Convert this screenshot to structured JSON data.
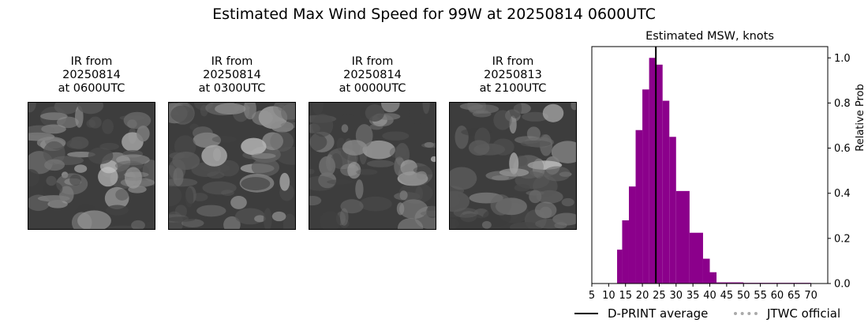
{
  "figure": {
    "title": "Estimated Max Wind Speed for 99W at 20250814 0600UTC"
  },
  "panels": [
    {
      "title": "IR from\n20250814\nat 0600UTC"
    },
    {
      "title": "IR from\n20250814\nat 0300UTC"
    },
    {
      "title": "IR from\n20250814\nat 0000UTC"
    },
    {
      "title": "IR from\n20250813\nat 2100UTC"
    }
  ],
  "chart_data": {
    "type": "bar",
    "title": "Estimated MSW, knots",
    "xlabel": "",
    "ylabel": "Relative Prob",
    "xlim": [
      5,
      75
    ],
    "ylim": [
      0,
      1.05
    ],
    "xticks": [
      5,
      10,
      15,
      20,
      25,
      30,
      35,
      40,
      45,
      50,
      55,
      60,
      65,
      70
    ],
    "yticks": [
      0.0,
      0.2,
      0.4,
      0.6,
      0.8,
      1.0
    ],
    "ytick_labels": [
      "0.0",
      "0.2",
      "0.4",
      "0.6",
      "0.8",
      "1.0"
    ],
    "y_axis_side": "right",
    "bar_color": "#8b008b",
    "bins": [
      {
        "x0": 12.5,
        "x1": 14,
        "value": 0.15
      },
      {
        "x0": 14,
        "x1": 16,
        "value": 0.28
      },
      {
        "x0": 16,
        "x1": 18,
        "value": 0.43
      },
      {
        "x0": 18,
        "x1": 20,
        "value": 0.68
      },
      {
        "x0": 20,
        "x1": 22,
        "value": 0.86
      },
      {
        "x0": 22,
        "x1": 24,
        "value": 1.0
      },
      {
        "x0": 24,
        "x1": 26,
        "value": 0.97
      },
      {
        "x0": 26,
        "x1": 28,
        "value": 0.81
      },
      {
        "x0": 28,
        "x1": 30,
        "value": 0.65
      },
      {
        "x0": 30,
        "x1": 34,
        "value": 0.41
      },
      {
        "x0": 34,
        "x1": 38,
        "value": 0.225
      },
      {
        "x0": 38,
        "x1": 40,
        "value": 0.11
      },
      {
        "x0": 40,
        "x1": 42,
        "value": 0.05
      },
      {
        "x0": 42,
        "x1": 50,
        "value": 0.005
      },
      {
        "x0": 50,
        "x1": 70,
        "value": 0.003
      }
    ],
    "dprint_average": 24,
    "legend": {
      "placement": "bottom",
      "entries": [
        {
          "label": "D-PRINT average",
          "style": "solid",
          "color": "#000000"
        },
        {
          "label": "JTWC official",
          "style": "dotted",
          "color": "#aaaaaa"
        }
      ]
    }
  }
}
